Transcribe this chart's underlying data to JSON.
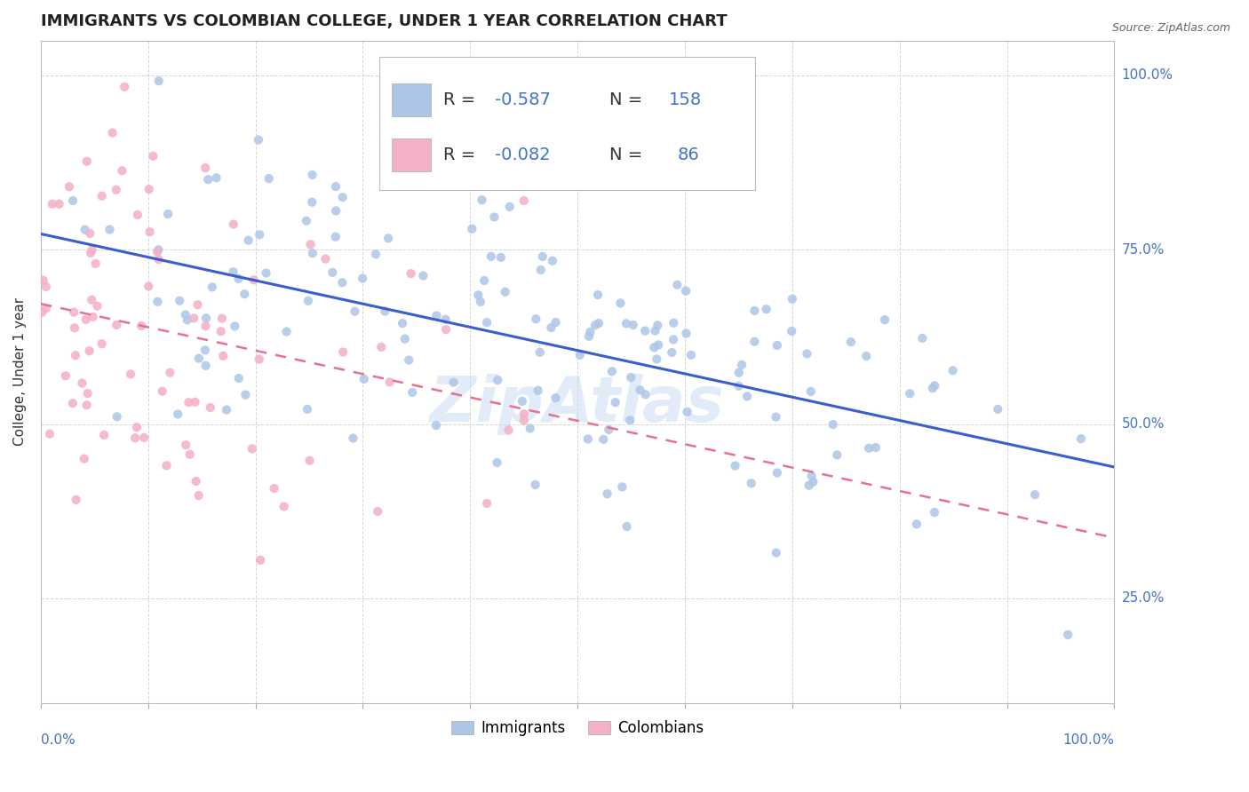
{
  "title": "IMMIGRANTS VS COLOMBIAN COLLEGE, UNDER 1 YEAR CORRELATION CHART",
  "source": "Source: ZipAtlas.com",
  "ylabel": "College, Under 1 year",
  "ytick_values": [
    0.25,
    0.5,
    0.75,
    1.0
  ],
  "ytick_labels": [
    "25.0%",
    "50.0%",
    "75.0%",
    "100.0%"
  ],
  "legend_label1": "Immigrants",
  "legend_label2": "Colombians",
  "blue_color": "#adc6e8",
  "pink_color": "#f4b0c5",
  "blue_line_color": "#3a5fcd",
  "pink_line_color": "#e87090",
  "text_color_blue": "#4472c4",
  "background_color": "#ffffff",
  "grid_color": "#cccccc",
  "title_fontsize": 13,
  "axis_label_fontsize": 11,
  "tick_fontsize": 11,
  "legend_fontsize": 14,
  "seed": 12,
  "n_blue": 158,
  "n_pink": 86,
  "blue_r": -0.587,
  "pink_r": -0.082,
  "watermark": "ZipAtlas"
}
